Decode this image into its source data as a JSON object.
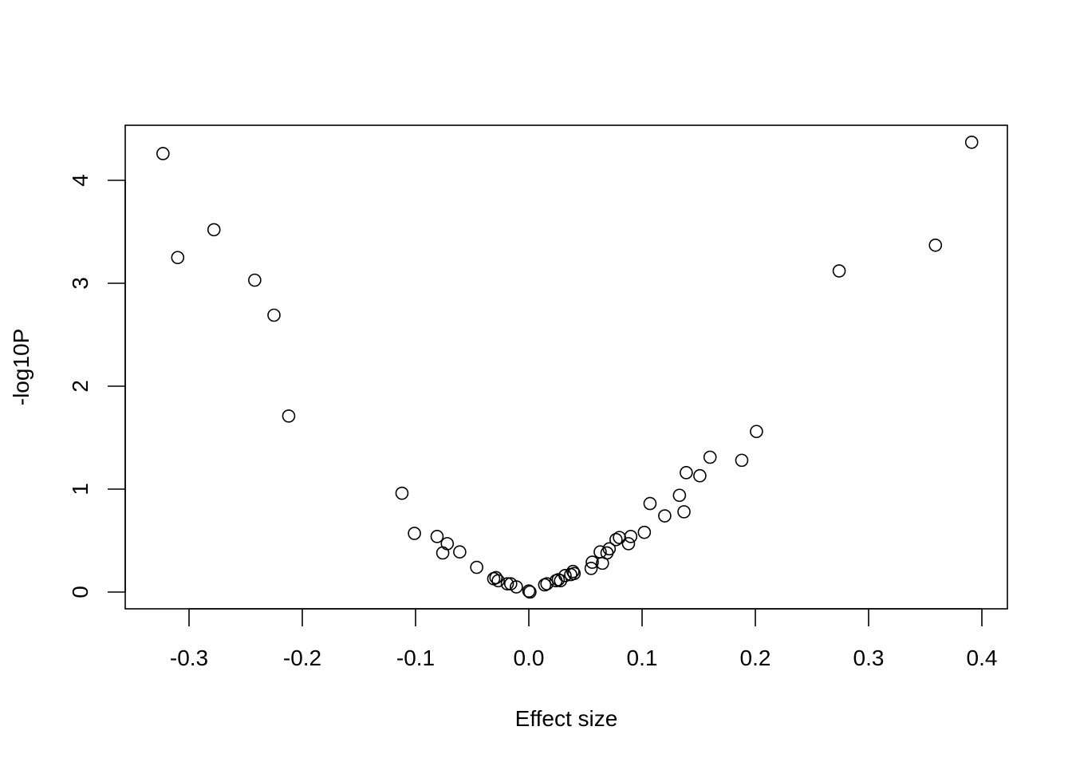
{
  "chart_data": {
    "type": "scatter",
    "title": "",
    "xlabel": "Effect size",
    "ylabel": "-log10P",
    "xlim": [
      -0.35,
      0.42
    ],
    "ylim": [
      -0.17,
      4.55
    ],
    "x_ticks": [
      -0.3,
      -0.2,
      -0.1,
      0.0,
      0.1,
      0.2,
      0.3,
      0.4
    ],
    "x_tick_labels": [
      "-0.3",
      "-0.2",
      "-0.1",
      "0.0",
      "0.1",
      "0.2",
      "0.3",
      "0.4"
    ],
    "y_ticks": [
      0,
      1,
      2,
      3,
      4
    ],
    "y_tick_labels": [
      "0",
      "1",
      "2",
      "3",
      "4"
    ],
    "grid": false,
    "series": [
      {
        "points": [
          {
            "x": -0.323,
            "y": 4.26
          },
          {
            "x": -0.31,
            "y": 3.25
          },
          {
            "x": -0.278,
            "y": 3.52
          },
          {
            "x": -0.242,
            "y": 3.03
          },
          {
            "x": -0.225,
            "y": 2.69
          },
          {
            "x": -0.212,
            "y": 1.71
          },
          {
            "x": -0.112,
            "y": 0.96
          },
          {
            "x": -0.101,
            "y": 0.57
          },
          {
            "x": -0.081,
            "y": 0.54
          },
          {
            "x": -0.076,
            "y": 0.38
          },
          {
            "x": -0.072,
            "y": 0.47
          },
          {
            "x": -0.061,
            "y": 0.39
          },
          {
            "x": -0.046,
            "y": 0.24
          },
          {
            "x": -0.031,
            "y": 0.13
          },
          {
            "x": -0.029,
            "y": 0.14
          },
          {
            "x": -0.027,
            "y": 0.11
          },
          {
            "x": -0.019,
            "y": 0.08
          },
          {
            "x": -0.016,
            "y": 0.08
          },
          {
            "x": -0.011,
            "y": 0.05
          },
          {
            "x": 0.0,
            "y": 0.01
          },
          {
            "x": 0.001,
            "y": 0.0
          },
          {
            "x": 0.014,
            "y": 0.07
          },
          {
            "x": 0.016,
            "y": 0.08
          },
          {
            "x": 0.024,
            "y": 0.11
          },
          {
            "x": 0.026,
            "y": 0.12
          },
          {
            "x": 0.028,
            "y": 0.11
          },
          {
            "x": 0.032,
            "y": 0.16
          },
          {
            "x": 0.037,
            "y": 0.17
          },
          {
            "x": 0.039,
            "y": 0.2
          },
          {
            "x": 0.04,
            "y": 0.18
          },
          {
            "x": 0.055,
            "y": 0.23
          },
          {
            "x": 0.056,
            "y": 0.29
          },
          {
            "x": 0.063,
            "y": 0.39
          },
          {
            "x": 0.065,
            "y": 0.28
          },
          {
            "x": 0.069,
            "y": 0.38
          },
          {
            "x": 0.071,
            "y": 0.42
          },
          {
            "x": 0.077,
            "y": 0.51
          },
          {
            "x": 0.08,
            "y": 0.53
          },
          {
            "x": 0.088,
            "y": 0.47
          },
          {
            "x": 0.09,
            "y": 0.54
          },
          {
            "x": 0.102,
            "y": 0.58
          },
          {
            "x": 0.107,
            "y": 0.86
          },
          {
            "x": 0.12,
            "y": 0.74
          },
          {
            "x": 0.133,
            "y": 0.94
          },
          {
            "x": 0.137,
            "y": 0.78
          },
          {
            "x": 0.139,
            "y": 1.16
          },
          {
            "x": 0.151,
            "y": 1.13
          },
          {
            "x": 0.16,
            "y": 1.31
          },
          {
            "x": 0.188,
            "y": 1.28
          },
          {
            "x": 0.201,
            "y": 1.56
          },
          {
            "x": 0.274,
            "y": 3.12
          },
          {
            "x": 0.359,
            "y": 3.37
          },
          {
            "x": 0.391,
            "y": 4.37
          }
        ]
      }
    ]
  }
}
